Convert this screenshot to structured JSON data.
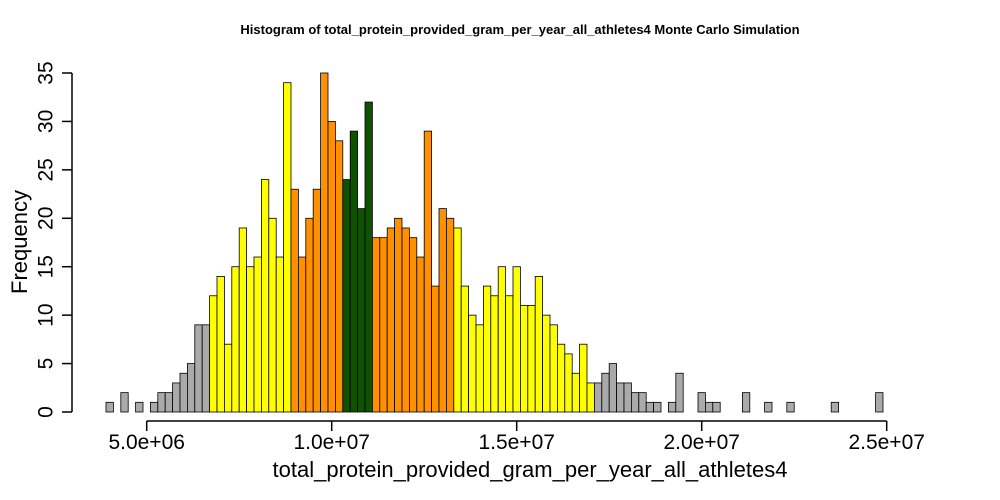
{
  "chart_data": {
    "type": "bar",
    "title": "Histogram of  total_protein_provided_gram_per_year_all_athletes4  Monte Carlo Simulation",
    "xlabel": "total_protein_provided_gram_per_year_all_athletes4",
    "ylabel": "Frequency",
    "xlim": [
      4000000,
      26500000
    ],
    "ylim": [
      0,
      35
    ],
    "x_ticks": [
      5000000,
      10000000,
      15000000,
      20000000,
      25000000
    ],
    "x_tick_labels": [
      "5.0e+06",
      "1.0e+07",
      "1.5e+07",
      "2.0e+07",
      "2.5e+07"
    ],
    "y_ticks": [
      0,
      5,
      10,
      15,
      20,
      25,
      30,
      35
    ],
    "y_tick_labels": [
      "0",
      "5",
      "10",
      "15",
      "20",
      "25",
      "30",
      "35"
    ],
    "grid": false,
    "legend": "none",
    "bin_start": 3900000,
    "bin_width": 200000,
    "values": [
      1,
      0,
      2,
      0,
      1,
      0,
      1,
      2,
      2,
      3,
      4,
      5,
      9,
      9,
      12,
      14,
      7,
      15,
      19,
      15,
      16,
      24,
      20,
      16,
      34,
      23,
      16,
      20,
      23,
      35,
      30,
      28,
      24,
      29,
      21,
      32,
      18,
      18,
      19,
      20,
      19,
      18,
      16,
      29,
      13,
      21,
      20,
      19,
      13,
      10,
      9,
      13,
      12,
      15,
      12,
      15,
      11,
      11,
      14,
      10,
      9,
      7,
      6,
      4,
      7,
      3,
      3,
      4,
      5,
      3,
      3,
      2,
      2,
      1,
      1,
      0,
      1,
      4,
      0,
      0,
      2,
      1,
      1,
      0,
      0,
      0,
      2,
      0,
      0,
      1,
      0,
      0,
      1,
      0,
      0,
      0,
      0,
      0,
      1,
      0,
      0,
      0,
      0,
      0,
      2
    ],
    "colors": {
      "grey": "#aaaaaa",
      "yellow": "#ffff00",
      "orange": "#ff9000",
      "green": "#0f5200",
      "outline": "#000000"
    },
    "color_bands": [
      {
        "color": "grey",
        "from": 3900000,
        "to": 6700000
      },
      {
        "color": "yellow",
        "from": 6700000,
        "to": 8900000
      },
      {
        "color": "orange",
        "from": 8900000,
        "to": 10300000
      },
      {
        "color": "green",
        "from": 10300000,
        "to": 11100000
      },
      {
        "color": "orange",
        "from": 11100000,
        "to": 13300000
      },
      {
        "color": "yellow",
        "from": 13300000,
        "to": 17100000
      },
      {
        "color": "grey",
        "from": 17100000,
        "to": 26500000
      }
    ]
  }
}
